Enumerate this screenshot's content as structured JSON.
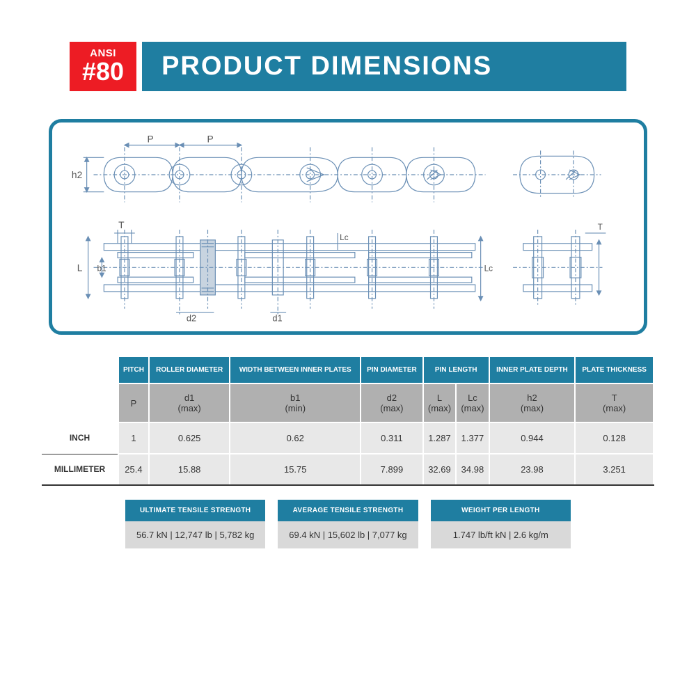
{
  "header": {
    "badge_top": "ANSI",
    "badge_bottom": "#80",
    "title": "PRODUCT DIMENSIONS"
  },
  "diagram": {
    "stroke_color": "#6a8fb5",
    "labels": [
      "P",
      "P",
      "h2",
      "T",
      "L",
      "b1",
      "d2",
      "d1",
      "Lc",
      "Lc",
      "T"
    ]
  },
  "table": {
    "headers": [
      "PITCH",
      "ROLLER DIAMETER",
      "WIDTH BETWEEN INNER PLATES",
      "PIN DIAMETER",
      "PIN LENGTH",
      "INNER PLATE DEPTH",
      "PLATE THICKNESS"
    ],
    "header_colspans": [
      1,
      1,
      1,
      1,
      2,
      1,
      1
    ],
    "symbols": [
      "P",
      "d1\n(max)",
      "b1\n(min)",
      "d2\n(max)",
      "L\n(max)",
      "Lc\n(max)",
      "h2\n(max)",
      "T\n(max)"
    ],
    "rows": [
      {
        "label": "INCH",
        "values": [
          "1",
          "0.625",
          "0.62",
          "0.311",
          "1.287",
          "1.377",
          "0.944",
          "0.128"
        ]
      },
      {
        "label": "MILLIMETER",
        "values": [
          "25.4",
          "15.88",
          "15.75",
          "7.899",
          "32.69",
          "34.98",
          "23.98",
          "3.251"
        ]
      }
    ]
  },
  "strength": [
    {
      "label": "ULTIMATE TENSILE STRENGTH",
      "value": "56.7 kN | 12,747 lb | 5,782 kg"
    },
    {
      "label": "AVERAGE TENSILE STRENGTH",
      "value": "69.4 kN | 15,602 lb | 7,077 kg"
    },
    {
      "label": "WEIGHT PER LENGTH",
      "value": "1.747 lb/ft kN | 2.6 kg/m"
    }
  ],
  "colors": {
    "accent": "#1f7ea1",
    "red": "#ed1c24",
    "grey_header": "#b0b0b0",
    "grey_cell": "#e8e8e8",
    "grey_strength": "#d9d9d9"
  }
}
